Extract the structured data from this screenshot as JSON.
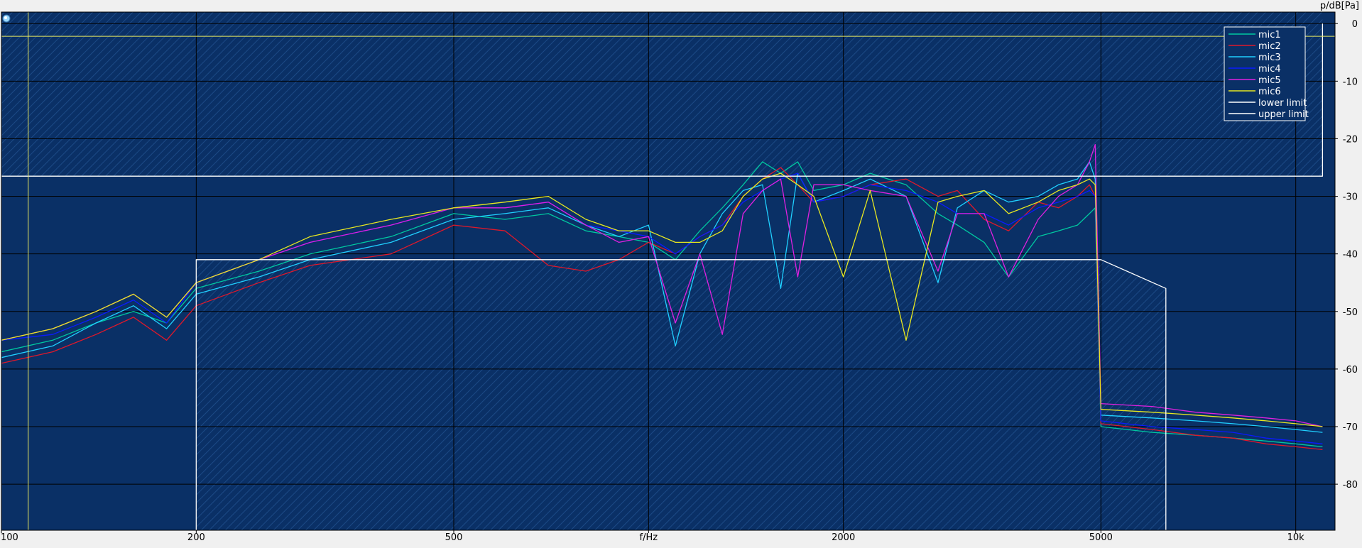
{
  "chart_data": {
    "type": "line",
    "xlabel": "f/Hz",
    "ylabel": "p/dB[Pa]",
    "xscale": "log",
    "xlim": [
      100,
      11500
    ],
    "ylim": [
      -88,
      2
    ],
    "x_ticks": [
      {
        "value": 100,
        "label": "100"
      },
      {
        "value": 200,
        "label": "200"
      },
      {
        "value": 500,
        "label": "500"
      },
      {
        "value": 1000,
        "label": "f/Hz"
      },
      {
        "value": 2000,
        "label": "2000"
      },
      {
        "value": 5000,
        "label": "5000"
      },
      {
        "value": 10000,
        "label": "10k"
      }
    ],
    "y_ticks": [
      {
        "value": 0,
        "label": "0"
      },
      {
        "value": -10,
        "label": "-10"
      },
      {
        "value": -20,
        "label": "-20"
      },
      {
        "value": -30,
        "label": "-30"
      },
      {
        "value": -40,
        "label": "-40"
      },
      {
        "value": -50,
        "label": "-50"
      },
      {
        "value": -60,
        "label": "-60"
      },
      {
        "value": -70,
        "label": "-70"
      },
      {
        "value": -80,
        "label": "-80"
      }
    ],
    "grid": true,
    "legend_position": "top-right",
    "background_color": "#0a3066",
    "marker_x": 110,
    "marker_y": -2.2,
    "series": [
      {
        "name": "mic1",
        "color": "#00c8a0",
        "x": [
          100,
          120,
          140,
          160,
          180,
          200,
          250,
          300,
          400,
          500,
          600,
          700,
          800,
          900,
          1000,
          1100,
          1200,
          1300,
          1400,
          1500,
          1600,
          1700,
          1800,
          2000,
          2200,
          2500,
          2800,
          3000,
          3300,
          3600,
          4000,
          4300,
          4600,
          4800,
          4900,
          5000,
          6000,
          7000,
          8000,
          9000,
          10000,
          11000
        ],
        "y": [
          -57,
          -55,
          -52,
          -50,
          -52,
          -46,
          -43,
          -40,
          -37,
          -33,
          -34,
          -33,
          -36,
          -37,
          -38,
          -41,
          -36,
          -32,
          -28,
          -24,
          -26,
          -24,
          -29,
          -28,
          -26,
          -28,
          -33,
          -35,
          -38,
          -44,
          -37,
          -36,
          -35,
          -33,
          -32,
          -70,
          -71,
          -71.5,
          -72,
          -72.5,
          -73,
          -73.5
        ]
      },
      {
        "name": "mic2",
        "color": "#e0182a",
        "x": [
          100,
          120,
          140,
          160,
          180,
          200,
          250,
          300,
          400,
          500,
          600,
          700,
          800,
          900,
          1000,
          1100,
          1200,
          1300,
          1400,
          1500,
          1600,
          1700,
          1800,
          2000,
          2200,
          2500,
          2800,
          3000,
          3300,
          3600,
          4000,
          4300,
          4600,
          4800,
          4900,
          5000,
          6000,
          7000,
          8000,
          9000,
          10000,
          11000
        ],
        "y": [
          -59,
          -57,
          -54,
          -51,
          -55,
          -49,
          -45,
          -42,
          -40,
          -35,
          -36,
          -42,
          -43,
          -41,
          -38,
          -40,
          -37,
          -35,
          -30,
          -27,
          -25,
          -28,
          -31,
          -30,
          -28,
          -27,
          -30,
          -29,
          -34,
          -36,
          -31,
          -32,
          -30,
          -28,
          -30,
          -69.5,
          -70.5,
          -71.5,
          -72,
          -73,
          -73.5,
          -74
        ]
      },
      {
        "name": "mic3",
        "color": "#20d0ff",
        "x": [
          100,
          120,
          140,
          160,
          180,
          200,
          250,
          300,
          400,
          500,
          600,
          700,
          800,
          900,
          1000,
          1100,
          1200,
          1300,
          1400,
          1500,
          1600,
          1700,
          1800,
          2000,
          2200,
          2500,
          2800,
          3000,
          3300,
          3600,
          4000,
          4300,
          4600,
          4800,
          4900,
          5000,
          6000,
          7000,
          8000,
          9000,
          10000,
          11000
        ],
        "y": [
          -58,
          -56,
          -52,
          -49,
          -53,
          -47,
          -44,
          -41,
          -38,
          -34,
          -33,
          -32,
          -35,
          -37,
          -35,
          -56,
          -40,
          -33,
          -29,
          -28,
          -46,
          -26,
          -31,
          -29,
          -27,
          -30,
          -45,
          -32,
          -29,
          -31,
          -30,
          -28,
          -27,
          -24,
          -27,
          -68,
          -68.5,
          -69,
          -69.5,
          -70,
          -70.5,
          -71
        ]
      },
      {
        "name": "mic4",
        "color": "#0a1aff",
        "x": [
          100,
          120,
          140,
          160,
          180,
          200,
          250,
          300,
          400,
          500,
          600,
          700,
          800,
          900,
          1000,
          1100,
          1200,
          1300,
          1400,
          1500,
          1600,
          1700,
          1800,
          2000,
          2200,
          2500,
          2800,
          3000,
          3300,
          3600,
          4000,
          4300,
          4600,
          4800,
          4900,
          5000,
          6000,
          7000,
          8000,
          9000,
          10000,
          11000
        ],
        "y": [
          -55,
          -54,
          -51,
          -48,
          -52,
          -45,
          -41,
          -38,
          -35,
          -32,
          -32,
          -31,
          -35,
          -36,
          -37,
          -40,
          -37,
          -35,
          -31,
          -29,
          -27,
          -26,
          -31,
          -30,
          -28,
          -29,
          -31,
          -33,
          -33,
          -35,
          -32,
          -31,
          -30,
          -29,
          -30,
          -69,
          -70,
          -70.5,
          -71,
          -72,
          -72.5,
          -73
        ]
      },
      {
        "name": "mic5",
        "color": "#e020e0",
        "x": [
          100,
          120,
          140,
          160,
          180,
          200,
          250,
          300,
          400,
          500,
          600,
          700,
          800,
          900,
          1000,
          1100,
          1200,
          1300,
          1400,
          1500,
          1600,
          1700,
          1800,
          2000,
          2200,
          2500,
          2800,
          3000,
          3300,
          3600,
          4000,
          4300,
          4600,
          4800,
          4900,
          5000,
          6000,
          7000,
          8000,
          9000,
          10000,
          11000
        ],
        "y": [
          -55,
          -53,
          -50,
          -47,
          -51,
          -45,
          -41,
          -38,
          -35,
          -32,
          -32,
          -31,
          -35,
          -38,
          -37,
          -52,
          -40,
          -54,
          -33,
          -29,
          -27,
          -44,
          -28,
          -28,
          -29,
          -30,
          -43,
          -33,
          -33,
          -44,
          -34,
          -30,
          -28,
          -24,
          -21,
          -66,
          -66.5,
          -67.5,
          -68,
          -68.5,
          -69,
          -70
        ]
      },
      {
        "name": "mic6",
        "color": "#e8e820",
        "x": [
          100,
          120,
          140,
          160,
          180,
          200,
          250,
          300,
          400,
          500,
          600,
          700,
          800,
          900,
          1000,
          1100,
          1200,
          1300,
          1400,
          1500,
          1600,
          1700,
          1800,
          2000,
          2200,
          2500,
          2800,
          3000,
          3300,
          3600,
          4000,
          4300,
          4600,
          4800,
          4900,
          5000,
          6000,
          7000,
          8000,
          9000,
          10000,
          11000
        ],
        "y": [
          -55,
          -53,
          -50,
          -47,
          -51,
          -45,
          -41,
          -37,
          -34,
          -32,
          -31,
          -30,
          -34,
          -36,
          -36,
          -38,
          -38,
          -36,
          -30,
          -27,
          -26,
          -28,
          -30,
          -44,
          -29,
          -55,
          -31,
          -30,
          -29,
          -33,
          -31,
          -29,
          -28,
          -27,
          -28,
          -67,
          -67.5,
          -68,
          -68.5,
          -69,
          -69.5,
          -70
        ]
      },
      {
        "name": "lower limit",
        "color": "#ffffff",
        "x": [
          200,
          200,
          4850,
          5000,
          6300,
          6300
        ],
        "y": [
          -88,
          -41,
          -41,
          -41,
          -46,
          -88
        ]
      },
      {
        "name": "upper limit",
        "color": "#ffffff",
        "x": [
          100,
          11000,
          11000
        ],
        "y": [
          -26.5,
          -26.5,
          0
        ]
      }
    ]
  }
}
